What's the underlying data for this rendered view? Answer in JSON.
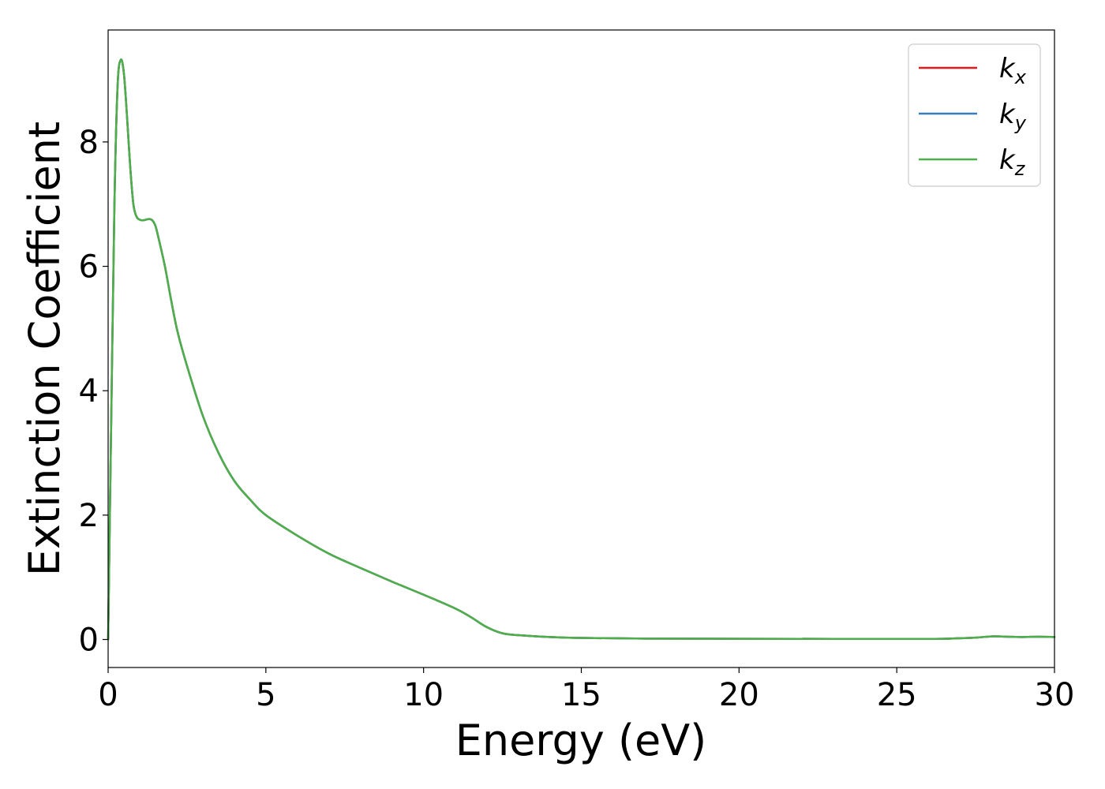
{
  "chart_data": {
    "type": "line",
    "xlabel": "Energy (eV)",
    "ylabel": "Extinction Coefficient",
    "xlim": [
      0,
      30
    ],
    "ylim": [
      -0.45,
      9.8
    ],
    "xticks": [
      "0",
      "5",
      "10",
      "15",
      "20",
      "25",
      "30"
    ],
    "yticks": [
      "0",
      "2",
      "4",
      "6",
      "8"
    ],
    "grid": false,
    "legend_position": "top-right",
    "x": [
      0,
      0.1,
      0.2,
      0.3,
      0.4,
      0.5,
      0.6,
      0.7,
      0.8,
      0.9,
      1.0,
      1.1,
      1.2,
      1.3,
      1.4,
      1.5,
      1.6,
      1.8,
      2.0,
      2.2,
      2.5,
      3.0,
      3.5,
      4.0,
      4.5,
      5.0,
      6.0,
      7.0,
      8.0,
      9.0,
      10.0,
      11.0,
      11.5,
      12.0,
      12.5,
      13.0,
      14.0,
      15.0,
      17.0,
      20.0,
      23.0,
      26.0,
      26.7,
      27.5,
      28.0,
      28.5,
      29.0,
      29.5,
      30.0
    ],
    "series": [
      {
        "name": "k_x",
        "label_base": "k",
        "label_sub": "x",
        "color": "#e41a1c",
        "values": [
          0.0,
          3.6,
          7.0,
          8.9,
          9.32,
          9.1,
          8.4,
          7.6,
          7.0,
          6.8,
          6.75,
          6.74,
          6.75,
          6.76,
          6.74,
          6.65,
          6.45,
          6.0,
          5.45,
          4.95,
          4.4,
          3.6,
          3.0,
          2.55,
          2.25,
          2.0,
          1.67,
          1.38,
          1.15,
          0.93,
          0.72,
          0.5,
          0.36,
          0.2,
          0.1,
          0.07,
          0.04,
          0.025,
          0.015,
          0.012,
          0.01,
          0.01,
          0.015,
          0.03,
          0.05,
          0.045,
          0.04,
          0.045,
          0.04
        ]
      },
      {
        "name": "k_y",
        "label_base": "k",
        "label_sub": "y",
        "color": "#377eb8",
        "values": [
          0.0,
          3.6,
          7.0,
          8.9,
          9.32,
          9.1,
          8.4,
          7.6,
          7.0,
          6.8,
          6.75,
          6.74,
          6.75,
          6.76,
          6.74,
          6.65,
          6.45,
          6.0,
          5.45,
          4.95,
          4.4,
          3.6,
          3.0,
          2.55,
          2.25,
          2.0,
          1.67,
          1.38,
          1.15,
          0.93,
          0.72,
          0.5,
          0.36,
          0.2,
          0.1,
          0.07,
          0.04,
          0.025,
          0.015,
          0.012,
          0.01,
          0.01,
          0.015,
          0.03,
          0.05,
          0.045,
          0.04,
          0.045,
          0.04
        ]
      },
      {
        "name": "k_z",
        "label_base": "k",
        "label_sub": "z",
        "color": "#4daf4a",
        "values": [
          0.0,
          3.6,
          7.0,
          8.9,
          9.32,
          9.1,
          8.4,
          7.6,
          7.0,
          6.8,
          6.75,
          6.74,
          6.75,
          6.76,
          6.74,
          6.65,
          6.45,
          6.0,
          5.45,
          4.95,
          4.4,
          3.6,
          3.0,
          2.55,
          2.25,
          2.0,
          1.67,
          1.38,
          1.15,
          0.93,
          0.72,
          0.5,
          0.36,
          0.2,
          0.1,
          0.07,
          0.04,
          0.025,
          0.015,
          0.012,
          0.01,
          0.01,
          0.015,
          0.03,
          0.05,
          0.045,
          0.04,
          0.045,
          0.04
        ]
      }
    ]
  }
}
